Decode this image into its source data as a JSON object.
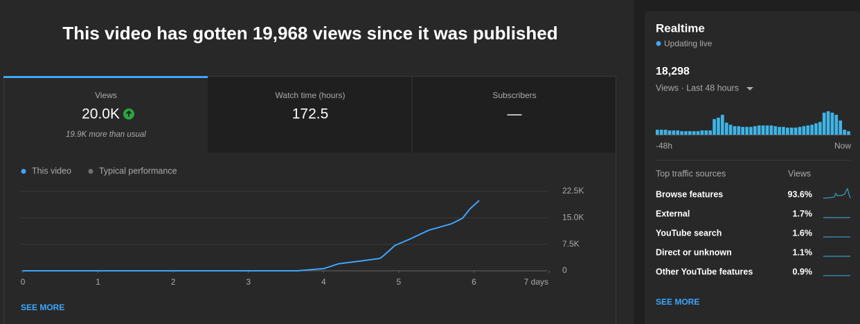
{
  "header": {
    "title": "This video has gotten 19,968 views since it was published"
  },
  "tabs": [
    {
      "label": "Views",
      "value": "20.0K",
      "note": "19.9K more than usual"
    },
    {
      "label": "Watch time (hours)",
      "value": "172.5"
    },
    {
      "label": "Subscribers",
      "value": "—"
    }
  ],
  "chart_data": {
    "type": "line",
    "series": [
      {
        "name": "This video",
        "color": "#3ea6ff",
        "x": [
          0,
          3.65,
          4.0,
          4.2,
          4.5,
          4.75,
          4.8,
          4.95,
          5.15,
          5.4,
          5.7,
          5.85,
          5.95,
          6.07
        ],
        "values": [
          0,
          0,
          600,
          2000,
          2800,
          3500,
          4300,
          7200,
          9000,
          11500,
          13300,
          14900,
          17600,
          19900
        ]
      },
      {
        "name": "Typical performance",
        "color": "#717171",
        "x": [],
        "values": []
      }
    ],
    "xlim": [
      0,
      7
    ],
    "xticks": [
      0,
      1,
      2,
      3,
      4,
      5,
      6,
      {
        "value": 7,
        "label": "7 days"
      }
    ],
    "ylim": [
      0,
      22500
    ],
    "yticks": [
      0,
      {
        "value": 7500,
        "label": "7.5K"
      },
      {
        "value": 15000,
        "label": "15.0K"
      },
      {
        "value": 22500,
        "label": "22.5K"
      }
    ],
    "grid": true
  },
  "main_link": "SEE MORE",
  "realtime": {
    "title": "Realtime",
    "status": "Updating live",
    "total": "18,298",
    "period": "Views · Last 48 hours",
    "chart": {
      "type": "bar",
      "color": "#3fb4e6",
      "values": [
        210,
        210,
        210,
        180,
        180,
        180,
        150,
        150,
        150,
        150,
        150,
        180,
        180,
        180,
        660,
        720,
        840,
        510,
        420,
        360,
        360,
        330,
        330,
        330,
        360,
        390,
        390,
        390,
        390,
        360,
        330,
        330,
        300,
        300,
        300,
        330,
        360,
        390,
        420,
        480,
        540,
        930,
        990,
        930,
        840,
        600,
        210,
        150
      ],
      "x_start": "-48h",
      "x_end": "Now"
    },
    "traffic": {
      "title": "Top traffic sources",
      "column": "Views",
      "rows": [
        [
          "Browse features",
          "93.6%"
        ],
        [
          "External",
          "1.7%"
        ],
        [
          "YouTube search",
          "1.6%"
        ],
        [
          "Direct or unknown",
          "1.1%"
        ],
        [
          "Other YouTube features",
          "0.9%"
        ]
      ]
    },
    "link": "SEE MORE"
  }
}
